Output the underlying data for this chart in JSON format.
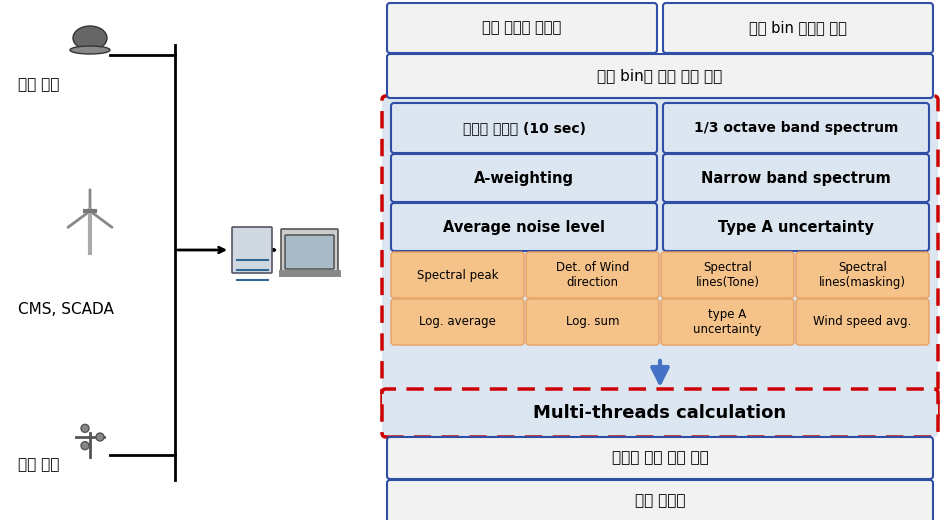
{
  "bg_color": "#ffffff",
  "box_blue_border": "#2e4fa5",
  "box_blue_fill": "#dce6f1",
  "box_white_fill": "#f2f2f2",
  "box_orange_fill": "#f5c28a",
  "red_dashed_color": "#cc0000",
  "arrow_color": "#4472c4",
  "row1": [
    "측정 데이터 초기화",
    "풍속 bin 데이터 분류"
  ],
  "row2": "풍속 bin에 따른 소음 계산",
  "row3": [
    "데이터 샘플링 (10 sec)",
    "1/3 octave band spectrum"
  ],
  "row4": [
    "A-weighting",
    "Narrow band spectrum"
  ],
  "row5": [
    "Average noise level",
    "Type A uncertainty"
  ],
  "row6a": [
    "Spectral peak",
    "Det. of Wind\ndirection",
    "Spectral\nlines(Tone)",
    "Spectral\nlines(masking)"
  ],
  "row6b": [
    "Log. average",
    "Log. sum",
    "type A\nuncertainty",
    "Wind speed avg."
  ],
  "multithreads": "Multi-threads calculation",
  "row_bottom1": "겉보기 음향 파워 레벨",
  "row_bottom2": "순음 가청도",
  "left_labels": [
    "음향 신호",
    "CMS, SCADA",
    "기상 신호"
  ]
}
